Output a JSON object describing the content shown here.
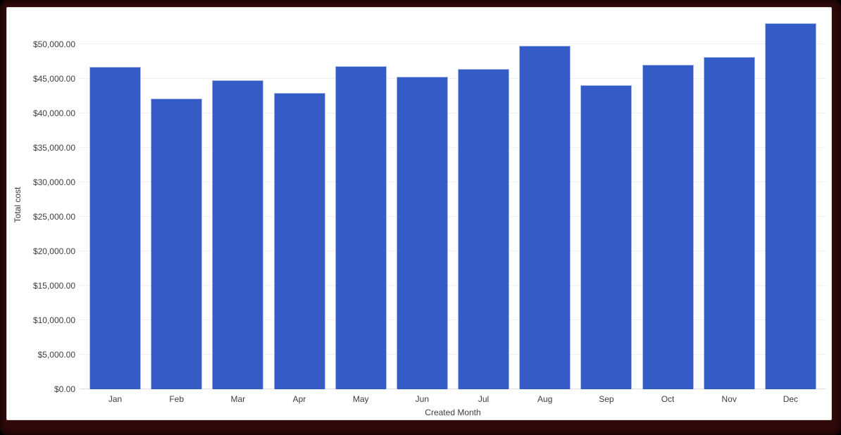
{
  "frame": {
    "border_color": "#300909",
    "card_background": "#ffffff",
    "card_border_color": "#d9d9d9"
  },
  "chart_data": {
    "type": "bar",
    "title": "",
    "xlabel": "Created Month",
    "ylabel": "Total cost",
    "categories": [
      "Jan",
      "Feb",
      "Mar",
      "Apr",
      "May",
      "Jun",
      "Jul",
      "Aug",
      "Sep",
      "Oct",
      "Nov",
      "Dec"
    ],
    "values": [
      46700,
      42100,
      44800,
      43000,
      46800,
      45300,
      46400,
      49800,
      44100,
      47000,
      48200,
      53100
    ],
    "value_format": "$#,##0.00",
    "ylim": [
      0,
      50000
    ],
    "ytick_step": 5000,
    "ytick_labels": [
      "$0.00",
      "$5,000.00",
      "$10,000.00",
      "$15,000.00",
      "$20,000.00",
      "$25,000.00",
      "$30,000.00",
      "$35,000.00",
      "$40,000.00",
      "$45,000.00",
      "$50,000.00"
    ],
    "grid": "horizontal-only",
    "legend": "none",
    "bar_color": "#355bc7",
    "bar_edge_color": "#becdf0",
    "gridline_color": "#f0f0f0",
    "baseline_color": "#dcdcdc",
    "axis_text_color": "#3c4043"
  }
}
